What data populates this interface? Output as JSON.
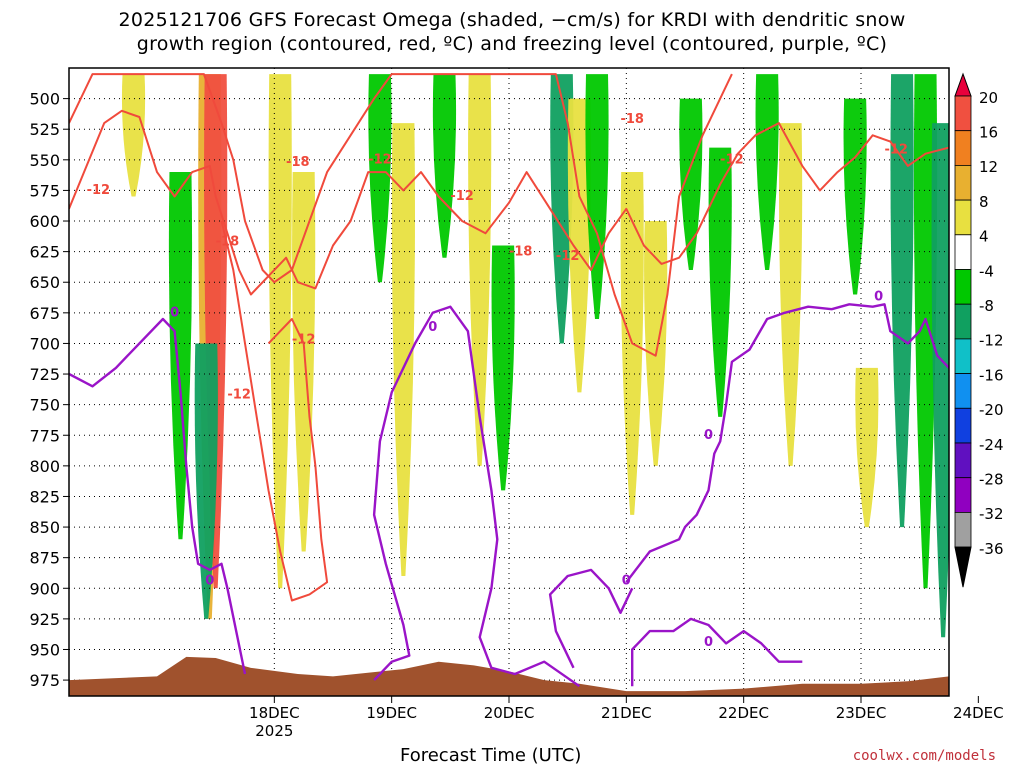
{
  "title": "2025121706 GFS Forecast Omega (shaded, −cm/s) for KRDI with dendritic snow\ngrowth region (contoured, red, ºC) and freezing level (contoured, purple, ºC)",
  "xlabel": "Forecast Time (UTC)",
  "credit": "coolwx.com/models",
  "colors": {
    "snow_contour": "#f04a3c",
    "freezing_contour": "#9a14c8",
    "terrain": "#a0522d"
  },
  "chart_data": {
    "type": "heatmap",
    "station": "KRDI",
    "run": "2025121706",
    "x_ticks": [
      {
        "label": "18DEC",
        "sub": "2025",
        "day": 1.0
      },
      {
        "label": "19DEC",
        "sub": "",
        "day": 2.0
      },
      {
        "label": "20DEC",
        "sub": "",
        "day": 3.0
      },
      {
        "label": "21DEC",
        "sub": "",
        "day": 4.0
      },
      {
        "label": "22DEC",
        "sub": "",
        "day": 5.0
      },
      {
        "label": "23DEC",
        "sub": "",
        "day": 6.0
      },
      {
        "label": "24DEC",
        "sub": "",
        "day": 7.0
      }
    ],
    "xlim_days": [
      -0.75,
      6.75
    ],
    "y_ticks": [
      500,
      525,
      550,
      575,
      600,
      625,
      650,
      675,
      700,
      725,
      750,
      775,
      800,
      825,
      850,
      875,
      900,
      925,
      950,
      975
    ],
    "ylim_hpa": [
      475,
      988
    ],
    "colorbar": {
      "levels": [
        20,
        16,
        12,
        8,
        4,
        -4,
        -8,
        -12,
        -16,
        -20,
        -24,
        -28,
        -32,
        -36
      ],
      "colors": [
        "#e8003c",
        "#f05040",
        "#f08020",
        "#e8b030",
        "#e8e040",
        "#ffffff",
        "#00c800",
        "#10a060",
        "#10c0c8",
        "#1090f0",
        "#1040e0",
        "#6010c0",
        "#9000c0",
        "#a0a0a0",
        "#000000"
      ]
    },
    "omega_bands": [
      {
        "day": 0.45,
        "p0": 480,
        "p1": 925,
        "val": 10
      },
      {
        "day": 0.5,
        "p0": 480,
        "p1": 900,
        "val": 18
      },
      {
        "day": 0.42,
        "p0": 700,
        "p1": 925,
        "val": -8
      },
      {
        "day": 0.2,
        "p0": 560,
        "p1": 860,
        "val": -6
      },
      {
        "day": -0.2,
        "p0": 480,
        "p1": 580,
        "val": 5
      },
      {
        "day": 1.05,
        "p0": 480,
        "p1": 900,
        "val": 6
      },
      {
        "day": 1.25,
        "p0": 560,
        "p1": 870,
        "val": 5
      },
      {
        "day": 1.9,
        "p0": 480,
        "p1": 650,
        "val": -6
      },
      {
        "day": 2.1,
        "p0": 520,
        "p1": 890,
        "val": 5
      },
      {
        "day": 2.45,
        "p0": 480,
        "p1": 630,
        "val": -6
      },
      {
        "day": 2.75,
        "p0": 480,
        "p1": 800,
        "val": 6
      },
      {
        "day": 2.95,
        "p0": 620,
        "p1": 820,
        "val": -6
      },
      {
        "day": 3.45,
        "p0": 480,
        "p1": 700,
        "val": -10
      },
      {
        "day": 3.6,
        "p0": 500,
        "p1": 740,
        "val": 5
      },
      {
        "day": 3.75,
        "p0": 480,
        "p1": 680,
        "val": -7
      },
      {
        "day": 4.05,
        "p0": 560,
        "p1": 840,
        "val": 6
      },
      {
        "day": 4.25,
        "p0": 600,
        "p1": 800,
        "val": 5
      },
      {
        "day": 4.55,
        "p0": 500,
        "p1": 640,
        "val": -6
      },
      {
        "day": 4.8,
        "p0": 540,
        "p1": 760,
        "val": -6
      },
      {
        "day": 5.2,
        "p0": 480,
        "p1": 640,
        "val": -7
      },
      {
        "day": 5.4,
        "p0": 520,
        "p1": 800,
        "val": 5
      },
      {
        "day": 5.95,
        "p0": 500,
        "p1": 660,
        "val": -7
      },
      {
        "day": 6.05,
        "p0": 720,
        "p1": 850,
        "val": 5
      },
      {
        "day": 6.35,
        "p0": 480,
        "p1": 850,
        "val": -10
      },
      {
        "day": 6.55,
        "p0": 480,
        "p1": 900,
        "val": -7
      },
      {
        "day": 6.7,
        "p0": 520,
        "p1": 940,
        "val": -9
      }
    ],
    "series": [
      {
        "name": "dendritic growth -12C",
        "kind": "snow",
        "points": [
          [
            -0.75,
            590
          ],
          [
            -0.6,
            555
          ],
          [
            -0.45,
            520
          ],
          [
            -0.3,
            510
          ],
          [
            -0.15,
            515
          ],
          [
            0.0,
            560
          ],
          [
            0.15,
            580
          ],
          [
            0.3,
            560
          ],
          [
            0.45,
            555
          ],
          [
            0.5,
            580
          ],
          [
            0.6,
            610
          ],
          [
            0.7,
            640
          ],
          [
            0.8,
            660
          ],
          [
            0.95,
            645
          ],
          [
            1.1,
            630
          ],
          [
            1.2,
            650
          ],
          [
            1.35,
            655
          ],
          [
            1.5,
            620
          ],
          [
            1.65,
            600
          ],
          [
            1.8,
            560
          ],
          [
            1.95,
            560
          ],
          [
            2.1,
            575
          ],
          [
            2.25,
            560
          ],
          [
            2.4,
            580
          ],
          [
            2.6,
            600
          ],
          [
            2.8,
            610
          ],
          [
            3.0,
            585
          ],
          [
            3.15,
            560
          ],
          [
            3.35,
            590
          ],
          [
            3.55,
            620
          ],
          [
            3.7,
            640
          ],
          [
            3.85,
            610
          ],
          [
            4.0,
            590
          ],
          [
            4.15,
            620
          ],
          [
            4.3,
            635
          ],
          [
            4.45,
            630
          ],
          [
            4.6,
            610
          ],
          [
            4.8,
            570
          ],
          [
            4.95,
            545
          ],
          [
            5.1,
            530
          ],
          [
            5.3,
            520
          ],
          [
            5.5,
            555
          ],
          [
            5.65,
            575
          ],
          [
            5.8,
            560
          ],
          [
            5.95,
            548
          ],
          [
            6.1,
            530
          ],
          [
            6.25,
            535
          ],
          [
            6.4,
            555
          ],
          [
            6.55,
            545
          ],
          [
            6.75,
            540
          ]
        ]
      },
      {
        "name": "dendritic growth -18C",
        "kind": "snow",
        "points": [
          [
            -0.75,
            520
          ],
          [
            -0.55,
            480
          ],
          [
            0.4,
            480
          ],
          [
            0.55,
            520
          ],
          [
            0.65,
            550
          ],
          [
            0.75,
            600
          ],
          [
            0.9,
            640
          ],
          [
            1.0,
            650
          ],
          [
            1.15,
            640
          ],
          [
            1.3,
            600
          ],
          [
            1.45,
            560
          ],
          [
            1.65,
            530
          ],
          [
            1.85,
            500
          ],
          [
            2.0,
            480
          ],
          [
            3.4,
            480
          ],
          [
            3.5,
            520
          ],
          [
            3.6,
            580
          ],
          [
            3.75,
            610
          ],
          [
            3.9,
            660
          ],
          [
            4.05,
            700
          ],
          [
            4.25,
            710
          ],
          [
            4.35,
            660
          ],
          [
            4.45,
            580
          ],
          [
            4.65,
            530
          ],
          [
            4.9,
            480
          ]
        ]
      },
      {
        "name": "lower -12C pocket",
        "kind": "snow",
        "points": [
          [
            0.55,
            600
          ],
          [
            0.65,
            640
          ],
          [
            0.75,
            700
          ],
          [
            0.85,
            760
          ],
          [
            0.95,
            820
          ],
          [
            1.05,
            870
          ],
          [
            1.15,
            910
          ],
          [
            1.3,
            905
          ],
          [
            1.45,
            895
          ],
          [
            1.4,
            860
          ],
          [
            1.35,
            800
          ],
          [
            1.3,
            760
          ],
          [
            1.25,
            700
          ],
          [
            1.15,
            680
          ],
          [
            1.05,
            690
          ],
          [
            0.95,
            700
          ]
        ]
      },
      {
        "name": "freezing level 0C",
        "kind": "freezing",
        "points": [
          [
            -0.75,
            725
          ],
          [
            -0.55,
            735
          ],
          [
            -0.35,
            720
          ],
          [
            -0.15,
            700
          ],
          [
            0.05,
            680
          ],
          [
            0.15,
            690
          ],
          [
            0.2,
            740
          ],
          [
            0.25,
            800
          ],
          [
            0.3,
            850
          ],
          [
            0.35,
            880
          ],
          [
            0.45,
            885
          ],
          [
            0.55,
            880
          ],
          [
            0.6,
            900
          ],
          [
            0.75,
            970
          ]
        ]
      },
      {
        "name": "freezing level 0C (2)",
        "kind": "freezing",
        "points": [
          [
            1.85,
            975
          ],
          [
            2.0,
            960
          ],
          [
            2.15,
            955
          ],
          [
            2.1,
            930
          ],
          [
            1.95,
            880
          ],
          [
            1.85,
            840
          ],
          [
            1.9,
            780
          ],
          [
            2.0,
            740
          ],
          [
            2.2,
            700
          ],
          [
            2.35,
            675
          ],
          [
            2.5,
            670
          ],
          [
            2.65,
            690
          ],
          [
            2.75,
            760
          ],
          [
            2.85,
            820
          ],
          [
            2.9,
            860
          ],
          [
            2.85,
            900
          ],
          [
            2.75,
            940
          ],
          [
            2.85,
            965
          ],
          [
            3.05,
            970
          ],
          [
            3.3,
            960
          ],
          [
            3.6,
            980
          ]
        ]
      },
      {
        "name": "freezing level 0C (3)",
        "kind": "freezing",
        "points": [
          [
            3.55,
            965
          ],
          [
            3.4,
            935
          ],
          [
            3.35,
            905
          ],
          [
            3.5,
            890
          ],
          [
            3.7,
            885
          ],
          [
            3.85,
            900
          ],
          [
            3.95,
            920
          ],
          [
            4.05,
            900
          ]
        ]
      },
      {
        "name": "freezing level 0C (4)",
        "kind": "freezing",
        "points": [
          [
            4.05,
            980
          ],
          [
            4.05,
            950
          ],
          [
            4.2,
            935
          ],
          [
            4.4,
            935
          ],
          [
            4.55,
            925
          ],
          [
            4.7,
            930
          ],
          [
            4.85,
            945
          ],
          [
            5.0,
            935
          ],
          [
            5.15,
            945
          ],
          [
            5.3,
            960
          ],
          [
            5.5,
            960
          ]
        ]
      },
      {
        "name": "freezing level 0C (5)",
        "kind": "freezing",
        "points": [
          [
            4.0,
            895
          ],
          [
            4.2,
            870
          ],
          [
            4.45,
            860
          ],
          [
            4.5,
            850
          ],
          [
            4.6,
            840
          ],
          [
            4.7,
            820
          ],
          [
            4.75,
            790
          ],
          [
            4.8,
            780
          ],
          [
            4.85,
            750
          ],
          [
            4.9,
            715
          ],
          [
            5.05,
            705
          ],
          [
            5.2,
            680
          ],
          [
            5.35,
            675
          ],
          [
            5.55,
            670
          ],
          [
            5.75,
            672
          ],
          [
            5.9,
            668
          ],
          [
            6.1,
            670
          ],
          [
            6.2,
            668
          ],
          [
            6.25,
            690
          ],
          [
            6.4,
            700
          ],
          [
            6.5,
            690
          ],
          [
            6.55,
            680
          ],
          [
            6.65,
            710
          ],
          [
            6.75,
            720
          ]
        ]
      }
    ],
    "contour_labels": [
      {
        "text": "-12",
        "day": -0.5,
        "p": 578,
        "kind": "snow"
      },
      {
        "text": "-12",
        "day": 0.7,
        "p": 745,
        "kind": "snow"
      },
      {
        "text": "-18",
        "day": 0.6,
        "p": 620,
        "kind": "snow"
      },
      {
        "text": "-18",
        "day": 1.2,
        "p": 555,
        "kind": "snow"
      },
      {
        "text": "-12",
        "day": 1.9,
        "p": 553,
        "kind": "snow"
      },
      {
        "text": "-12",
        "day": 1.25,
        "p": 700,
        "kind": "snow"
      },
      {
        "text": "-12",
        "day": 2.6,
        "p": 583,
        "kind": "snow"
      },
      {
        "text": "-18",
        "day": 3.1,
        "p": 628,
        "kind": "snow"
      },
      {
        "text": "-12",
        "day": 3.5,
        "p": 632,
        "kind": "snow"
      },
      {
        "text": "-18",
        "day": 4.05,
        "p": 520,
        "kind": "snow"
      },
      {
        "text": "-12",
        "day": 4.9,
        "p": 553,
        "kind": "snow"
      },
      {
        "text": "-12",
        "day": 6.3,
        "p": 545,
        "kind": "snow"
      },
      {
        "text": "0",
        "day": 0.15,
        "p": 678,
        "kind": "freezing"
      },
      {
        "text": "0",
        "day": 2.35,
        "p": 690,
        "kind": "freezing"
      },
      {
        "text": "0",
        "day": 0.45,
        "p": 897,
        "kind": "freezing"
      },
      {
        "text": "0",
        "day": 4.0,
        "p": 897,
        "kind": "freezing"
      },
      {
        "text": "0",
        "day": 4.7,
        "p": 778,
        "kind": "freezing"
      },
      {
        "text": "0",
        "day": 4.7,
        "p": 947,
        "kind": "freezing"
      },
      {
        "text": "0",
        "day": 6.15,
        "p": 665,
        "kind": "freezing"
      }
    ],
    "terrain": [
      [
        -0.75,
        975
      ],
      [
        0.0,
        972
      ],
      [
        0.25,
        956
      ],
      [
        0.5,
        957
      ],
      [
        0.8,
        965
      ],
      [
        1.2,
        970
      ],
      [
        1.5,
        972
      ],
      [
        1.9,
        968
      ],
      [
        2.1,
        966
      ],
      [
        2.4,
        960
      ],
      [
        2.7,
        963
      ],
      [
        3.0,
        968
      ],
      [
        3.3,
        975
      ],
      [
        3.6,
        978
      ],
      [
        4.0,
        984
      ],
      [
        4.5,
        984
      ],
      [
        5.0,
        982
      ],
      [
        5.5,
        978
      ],
      [
        6.0,
        978
      ],
      [
        6.4,
        976
      ],
      [
        6.75,
        972
      ]
    ]
  }
}
